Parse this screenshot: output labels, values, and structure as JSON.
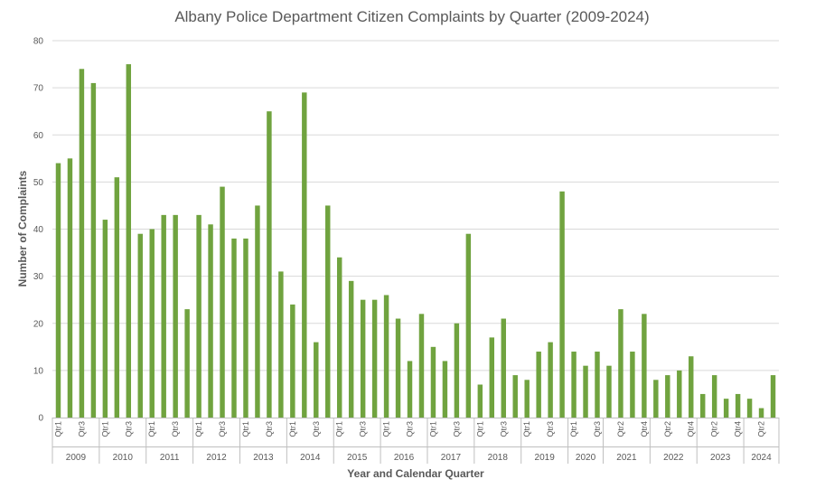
{
  "chart_data": {
    "type": "bar",
    "title": "Albany Police Department Citizen Complaints by Quarter (2009-2024)",
    "xlabel": "Year and Calendar Quarter",
    "ylabel": "Number of Complaints",
    "ylim": [
      0,
      80
    ],
    "yticks": [
      0,
      10,
      20,
      30,
      40,
      50,
      60,
      70,
      80
    ],
    "grid": true,
    "color": "#70a33f",
    "years": [
      {
        "year": "2009",
        "quarters": [
          "Qtr1",
          "",
          "Qtr3",
          ""
        ],
        "values": [
          54,
          55,
          74,
          71
        ]
      },
      {
        "year": "2010",
        "quarters": [
          "Qtr1",
          "",
          "Qtr3",
          ""
        ],
        "values": [
          42,
          51,
          75,
          39
        ]
      },
      {
        "year": "2011",
        "quarters": [
          "Qtr1",
          "",
          "Qtr3",
          ""
        ],
        "values": [
          40,
          43,
          43,
          23
        ]
      },
      {
        "year": "2012",
        "quarters": [
          "Qtr1",
          "",
          "Qtr3",
          ""
        ],
        "values": [
          43,
          41,
          49,
          38
        ]
      },
      {
        "year": "2013",
        "quarters": [
          "Qtr1",
          "",
          "Qtr3",
          ""
        ],
        "values": [
          38,
          45,
          65,
          31
        ]
      },
      {
        "year": "2014",
        "quarters": [
          "Qtr1",
          "",
          "Qtr3",
          ""
        ],
        "values": [
          24,
          69,
          16,
          45
        ]
      },
      {
        "year": "2015",
        "quarters": [
          "Qtr1",
          "",
          "Qtr3",
          ""
        ],
        "values": [
          34,
          29,
          25,
          25
        ]
      },
      {
        "year": "2016",
        "quarters": [
          "Qtr1",
          "",
          "Qtr3",
          ""
        ],
        "values": [
          26,
          21,
          12,
          22
        ]
      },
      {
        "year": "2017",
        "quarters": [
          "Qtr1",
          "",
          "Qtr3",
          ""
        ],
        "values": [
          15,
          12,
          20,
          39
        ]
      },
      {
        "year": "2018",
        "quarters": [
          "Qtr1",
          "",
          "Qtr3",
          ""
        ],
        "values": [
          7,
          17,
          21,
          9
        ]
      },
      {
        "year": "2019",
        "quarters": [
          "Qtr1",
          "",
          "Qtr3",
          ""
        ],
        "values": [
          8,
          14,
          16,
          48
        ]
      },
      {
        "year": "2020",
        "quarters": [
          "Qtr1",
          "",
          "Qtr3"
        ],
        "values": [
          14,
          11,
          14
        ]
      },
      {
        "year": "2021",
        "quarters": [
          "",
          "Qtr2",
          "",
          "Qtr4"
        ],
        "values": [
          11,
          23,
          14,
          22
        ]
      },
      {
        "year": "2022",
        "quarters": [
          "",
          "Qtr2",
          "",
          "Qtr4"
        ],
        "values": [
          8,
          9,
          10,
          13
        ]
      },
      {
        "year": "2023",
        "quarters": [
          "",
          "Qtr2",
          "",
          "Qtr4"
        ],
        "values": [
          5,
          9,
          4,
          5
        ]
      },
      {
        "year": "2024",
        "quarters": [
          "",
          "Qtr2",
          ""
        ],
        "values": [
          4,
          2,
          9
        ]
      }
    ]
  }
}
